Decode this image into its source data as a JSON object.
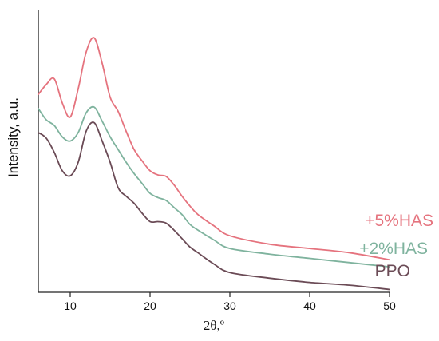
{
  "chart_data": {
    "type": "line",
    "xlabel": "2θ,º",
    "ylabel": "Intensity, a.u.",
    "xlim": [
      6,
      50
    ],
    "ylim": [
      0,
      10
    ],
    "xticks": [
      10,
      20,
      30,
      40,
      50
    ],
    "show_y_ticks": false,
    "grid": false,
    "series": [
      {
        "name": "PPO",
        "color": "#6b4b56",
        "x": [
          6,
          7,
          8,
          9,
          10,
          11,
          12,
          13,
          14,
          15,
          16,
          17,
          18,
          19,
          20,
          21,
          22,
          23,
          24,
          25,
          26,
          28,
          30,
          35,
          40,
          45,
          50
        ],
        "y": [
          5.65,
          5.45,
          4.95,
          4.3,
          4.12,
          4.6,
          5.7,
          6.0,
          5.35,
          4.6,
          3.7,
          3.4,
          3.15,
          2.8,
          2.5,
          2.5,
          2.45,
          2.2,
          1.9,
          1.6,
          1.4,
          1.0,
          0.7,
          0.5,
          0.35,
          0.25,
          0.1
        ]
      },
      {
        "name": "+2%HAS",
        "color": "#7fb39e",
        "x": [
          6,
          7,
          8,
          9,
          10,
          11,
          12,
          13,
          14,
          15,
          16,
          17,
          18,
          19,
          20,
          21,
          22,
          23,
          24,
          25,
          26,
          28,
          30,
          35,
          40,
          45,
          50
        ],
        "y": [
          6.5,
          6.1,
          5.9,
          5.5,
          5.35,
          5.65,
          6.35,
          6.55,
          6.05,
          5.5,
          5.05,
          4.6,
          4.2,
          3.85,
          3.5,
          3.35,
          3.25,
          3.0,
          2.75,
          2.4,
          2.2,
          1.85,
          1.55,
          1.35,
          1.2,
          1.05,
          0.9
        ]
      },
      {
        "name": "+5%HAS",
        "color": "#e5737e",
        "x": [
          6,
          7,
          8,
          9,
          10,
          11,
          12,
          13,
          14,
          15,
          16,
          17,
          18,
          19,
          20,
          21,
          22,
          23,
          24,
          25,
          26,
          28,
          30,
          35,
          40,
          45,
          50
        ],
        "y": [
          7.0,
          7.35,
          7.55,
          6.7,
          6.2,
          7.2,
          8.5,
          9.0,
          8.1,
          6.9,
          6.4,
          5.7,
          5.05,
          4.65,
          4.3,
          4.15,
          4.1,
          3.8,
          3.4,
          3.05,
          2.75,
          2.35,
          2.0,
          1.7,
          1.55,
          1.4,
          1.15
        ]
      }
    ],
    "series_labels_placement": "right-end"
  }
}
